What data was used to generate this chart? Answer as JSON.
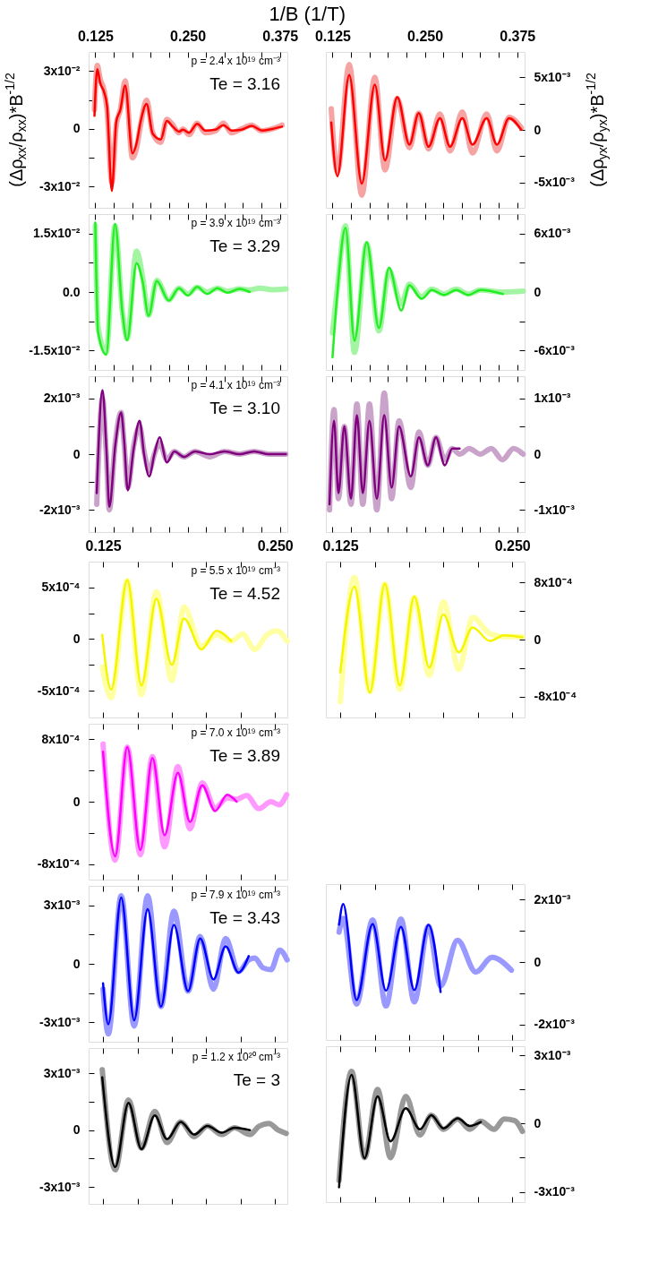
{
  "chart_data": [
    {
      "type": "line",
      "xlabel": "1/B (1/T)",
      "ylabel": "(Δρ$_{xx}$/ρ$_{xx}$)*B$^{-1/2}$",
      "annotations": [
        "p = 2.4 x 10¹⁹ cm⁻³",
        "Te = 3.16"
      ],
      "xlim": [
        0.116,
        0.385
      ],
      "xticks": [
        0.125,
        {
          "value": 0.15,
          "label": null
        },
        {
          "value": 0.175,
          "label": null
        },
        {
          "value": 0.2,
          "label": null
        },
        {
          "value": 0.225,
          "label": null
        },
        {
          "value": 0.25,
          "label": "0.250"
        },
        {
          "value": 0.275,
          "label": null
        },
        {
          "value": 0.3,
          "label": null
        },
        {
          "value": 0.325,
          "label": null
        },
        {
          "value": 0.35,
          "label": null
        },
        0.375
      ],
      "ylim": [
        -0.041,
        0.04
      ],
      "yticks": [
        {
          "value": -0.03,
          "label": "-3x10⁻²"
        },
        {
          "value": -0.015,
          "label": null
        },
        0,
        {
          "value": 0.015,
          "label": null
        },
        {
          "value": 0.03,
          "label": "3x10⁻²"
        }
      ],
      "x": [
        0.1239,
        0.1277,
        0.1316,
        0.137,
        0.1409,
        0.1474,
        0.1534,
        0.1589,
        0.1655,
        0.1753,
        0.1808,
        0.1863,
        0.1945,
        0.2027,
        0.2136,
        0.2218,
        0.23,
        0.2382,
        0.2437,
        0.2519,
        0.2629,
        0.2738,
        0.2875,
        0.2984,
        0.3094,
        0.323,
        0.3367,
        0.3504,
        0.3641,
        0.3777
      ],
      "series": [
        {
          "color": "#f5a3a3",
          "values": [
            0.01,
            0.033,
            0.026,
            0.02,
            0.01,
            -0.028,
            0.002,
            0.01,
            0.025,
            -0.015,
            -0.01,
            0.002,
            0.015,
            -0.002,
            -0.007,
            0.005,
            0.002,
            -0.002,
            0.0,
            -0.003,
            0.003,
            -0.002,
            -0.001,
            0.003,
            -0.002,
            0.0,
            0.002,
            -0.001,
            0.0,
            0.002
          ]
        },
        {
          "color": "#ff0000",
          "values": [
            0.0068,
            0.031,
            0.024,
            0.019,
            0.012,
            -0.0322,
            0.0037,
            0.0099,
            0.0226,
            -0.0127,
            -0.0076,
            0.0037,
            0.013,
            -0.0025,
            -0.0055,
            0.0041,
            0.0012,
            -0.0014,
            -0.0004,
            -0.002,
            0.0027,
            -0.0008,
            -0.0004,
            0.002,
            -0.0008,
            -0.0004,
            0.0016,
            -0.0008,
            0.0,
            0.0012
          ]
        }
      ]
    },
    {
      "type": "line",
      "ylabel": "(Δρ$_{yx}$/ρ$_{yx}$)*B$^{-1/2}$",
      "xlim": [
        0.116,
        0.385
      ],
      "xticks": [
        0.125,
        {
          "value": 0.15,
          "label": null
        },
        {
          "value": 0.175,
          "label": null
        },
        {
          "value": 0.2,
          "label": null
        },
        {
          "value": 0.225,
          "label": null
        },
        {
          "value": 0.25,
          "label": "0.250"
        },
        {
          "value": 0.275,
          "label": null
        },
        {
          "value": 0.3,
          "label": null
        },
        {
          "value": 0.325,
          "label": null
        },
        {
          "value": 0.35,
          "label": null
        },
        0.375
      ],
      "ylim": [
        -0.0074,
        0.0074
      ],
      "yticks": [
        {
          "value": -0.005,
          "label": "-5x10⁻³"
        },
        {
          "value": -0.0025,
          "label": null
        },
        0,
        {
          "value": 0.0025,
          "label": null
        },
        {
          "value": 0.005,
          "label": "5x10⁻³"
        }
      ],
      "x": [
        0.1233,
        0.1316,
        0.1476,
        0.1646,
        0.1823,
        0.196,
        0.2126,
        0.2291,
        0.2417,
        0.255,
        0.2704,
        0.2841,
        0.3007,
        0.3144,
        0.3337,
        0.3475,
        0.364,
        0.3805
      ],
      "series": [
        {
          "color": "#f5a3a3",
          "values": [
            0.002,
            -0.004,
            0.0062,
            -0.0062,
            0.005,
            -0.0038,
            0.003,
            -0.0017,
            0.0016,
            -0.0018,
            0.0015,
            -0.002,
            0.0017,
            -0.0022,
            0.0015,
            -0.002,
            0.0012,
            0.0002
          ]
        },
        {
          "color": "#ff0000",
          "values": [
            0.0007,
            -0.0044,
            0.0052,
            -0.0051,
            0.0043,
            -0.0029,
            0.0031,
            -0.0014,
            0.0016,
            -0.0016,
            0.0011,
            -0.0016,
            0.0011,
            -0.0014,
            0.0011,
            -0.0014,
            0.0011,
            0.0
          ]
        }
      ]
    },
    {
      "type": "line",
      "tick_labels": "y",
      "annotations": [
        "p = 3.9 x 10¹⁹ cm⁻³",
        "Te = 3.29"
      ],
      "xlim": [
        0.116,
        0.385
      ],
      "xticks": [
        0.125,
        {
          "value": 0.15,
          "label": null
        },
        {
          "value": 0.175,
          "label": null
        },
        {
          "value": 0.2,
          "label": null
        },
        {
          "value": 0.225,
          "label": null
        },
        0.25,
        {
          "value": 0.275,
          "label": null
        },
        {
          "value": 0.3,
          "label": null
        },
        {
          "value": 0.325,
          "label": null
        },
        {
          "value": 0.35,
          "label": null
        },
        0.375
      ],
      "ylim": [
        -0.02,
        0.02
      ],
      "yticks": [
        {
          "value": -0.015,
          "label": "-1.5x10⁻²"
        },
        {
          "value": -0.0075,
          "label": null
        },
        {
          "value": 0,
          "label": "0.0"
        },
        {
          "value": 0.0075,
          "label": null
        },
        {
          "value": 0.015,
          "label": "1.5x10⁻²"
        }
      ],
      "x": [
        0.125,
        0.1288,
        0.1398,
        0.1518,
        0.1617,
        0.1682,
        0.1808,
        0.189,
        0.1972,
        0.2082,
        0.2246,
        0.2382,
        0.2503,
        0.2629,
        0.2765,
        0.2902,
        0.3039,
        0.3203,
        0.334,
        0.3476,
        0.3641,
        0.3832
      ],
      "series": [
        {
          "color": "#a3f5a3",
          "values": [
            0.017,
            -0.009,
            -0.0155,
            0.017,
            -0.005,
            -0.012,
            0.0105,
            0.004,
            -0.006,
            0.003,
            -0.002,
            0.001,
            -0.0005,
            0.0012,
            0.0,
            0.001,
            0.0002,
            0.0008,
            0.0005,
            0.001,
            0.0006,
            0.0008
          ]
        },
        {
          "color": "#22ee22",
          "values": [
            0.0178,
            -0.0103,
            -0.0161,
            0.0175,
            -0.0053,
            -0.0124,
            0.0074,
            0.0028,
            -0.0061,
            0.0028,
            -0.0022,
            0.001,
            -0.0009,
            0.0013,
            -0.0005,
            0.001,
            -0.0002,
            0.0008,
            0.0,
            null,
            null,
            null
          ]
        }
      ]
    },
    {
      "type": "line",
      "tick_labels": "y",
      "xlim": [
        0.116,
        0.385
      ],
      "xticks": [
        0.125,
        {
          "value": 0.15,
          "label": null
        },
        {
          "value": 0.175,
          "label": null
        },
        {
          "value": 0.2,
          "label": null
        },
        {
          "value": 0.225,
          "label": null
        },
        0.25,
        {
          "value": 0.275,
          "label": null
        },
        {
          "value": 0.3,
          "label": null
        },
        {
          "value": 0.325,
          "label": null
        },
        {
          "value": 0.35,
          "label": null
        },
        0.375
      ],
      "ylim": [
        -0.008,
        0.008
      ],
      "yticks": [
        {
          "value": -0.006,
          "label": "-6x10⁻³"
        },
        {
          "value": -0.003,
          "label": null
        },
        0,
        {
          "value": 0.003,
          "label": null
        },
        {
          "value": 0.006,
          "label": "6x10⁻³"
        }
      ],
      "x": [
        0.125,
        0.1316,
        0.1426,
        0.1547,
        0.1713,
        0.1878,
        0.2015,
        0.2181,
        0.2291,
        0.2456,
        0.2594,
        0.2759,
        0.2924,
        0.3089,
        0.3254,
        0.3557,
        0.3833
      ],
      "series": [
        {
          "color": "#a3f5a3",
          "values": [
            -0.0042,
            0.0005,
            0.0068,
            -0.0062,
            0.005,
            -0.004,
            0.0022,
            -0.0012,
            0.0008,
            -0.0005,
            0.0003,
            -0.0002,
            0.0003,
            -0.0002,
            0.0002,
            0.0,
            0.0001
          ]
        },
        {
          "color": "#22ee22",
          "values": [
            -0.0067,
            0.0,
            0.0066,
            -0.005,
            0.0051,
            -0.0037,
            0.0025,
            -0.0019,
            0.0007,
            -0.0007,
            0.0002,
            -0.0003,
            0.0002,
            -0.0003,
            0.0002,
            -0.0002,
            null
          ]
        }
      ]
    },
    {
      "type": "line",
      "tick_labels": "y",
      "annotations": [
        "p = 4.1 x 10¹⁹ cm⁻³",
        "Te = 3.10"
      ],
      "xlim": [
        0.116,
        0.385
      ],
      "xticks": [
        0.125,
        {
          "value": 0.15,
          "label": null
        },
        {
          "value": 0.175,
          "label": null
        },
        {
          "value": 0.2,
          "label": null
        },
        {
          "value": 0.225,
          "label": null
        },
        0.25,
        {
          "value": 0.275,
          "label": null
        },
        {
          "value": 0.3,
          "label": null
        },
        {
          "value": 0.325,
          "label": null
        },
        {
          "value": 0.35,
          "label": null
        },
        0.375
      ],
      "ylim": [
        -0.0028,
        0.0028
      ],
      "yticks": [
        {
          "value": -0.002,
          "label": "-2x10⁻³"
        },
        {
          "value": -0.001,
          "label": null
        },
        0,
        {
          "value": 0.001,
          "label": null
        },
        {
          "value": 0.002,
          "label": "2x10⁻³"
        }
      ],
      "x": [
        0.127,
        0.1348,
        0.14,
        0.144,
        0.152,
        0.16,
        0.164,
        0.169,
        0.177,
        0.185,
        0.191,
        0.198,
        0.205,
        0.212,
        0.222,
        0.232,
        0.245,
        0.26,
        0.28,
        0.3,
        0.32,
        0.34,
        0.36,
        0.383
      ],
      "series": [
        {
          "color": "#c9a3c9",
          "values": [
            -0.0018,
            0.002,
            0.0,
            -0.002,
            0.0004,
            0.0015,
            0.0004,
            -0.0012,
            0.0003,
            0.001,
            0.0001,
            -0.0006,
            0.0,
            0.0004,
            -0.0002,
            0.0001,
            -0.0001,
            0.0001,
            -0.0001,
            0.0001,
            0.0,
            0.0001,
            0.0,
            0.0
          ]
        },
        {
          "color": "#800080",
          "values": [
            -0.0014,
            0.0023,
            0.0002,
            -0.0019,
            0.0003,
            0.0015,
            0.0005,
            -0.0013,
            0.0002,
            0.0012,
            0.0,
            -0.0008,
            0.0,
            0.0006,
            -0.0003,
            0.0001,
            -0.0001,
            0.0001,
            0.0,
            0.0001,
            0.0,
            0.0001,
            0.0,
            0.0
          ]
        }
      ]
    },
    {
      "type": "line",
      "tick_labels": "y",
      "xlim": [
        0.116,
        0.385
      ],
      "xticks": [
        0.125,
        {
          "value": 0.15,
          "label": null
        },
        {
          "value": 0.175,
          "label": null
        },
        {
          "value": 0.2,
          "label": null
        },
        {
          "value": 0.225,
          "label": null
        },
        0.25,
        {
          "value": 0.275,
          "label": null
        },
        {
          "value": 0.3,
          "label": null
        },
        {
          "value": 0.325,
          "label": null
        },
        {
          "value": 0.35,
          "label": null
        },
        0.375
      ],
      "ylim": [
        -0.0014,
        0.0014
      ],
      "yticks": [
        {
          "value": -0.001,
          "label": "-1x10⁻³"
        },
        {
          "value": -0.0005,
          "label": null
        },
        0,
        {
          "value": 0.0005,
          "label": null
        },
        {
          "value": 0.001,
          "label": "1x10⁻³"
        }
      ],
      "x": [
        0.121,
        0.127,
        0.133,
        0.141,
        0.15,
        0.158,
        0.166,
        0.175,
        0.185,
        0.195,
        0.205,
        0.215,
        0.231,
        0.242,
        0.254,
        0.265,
        0.277,
        0.287,
        0.297,
        0.31,
        0.325,
        0.34,
        0.355,
        0.37,
        0.383
      ],
      "series": [
        {
          "color": "#c9a3c9",
          "values": [
            -0.001,
            0.0008,
            -0.0008,
            0.0005,
            -0.0009,
            0.0009,
            -0.0009,
            0.0009,
            -0.001,
            0.0011,
            -0.0008,
            0.0006,
            -0.0006,
            0.0004,
            -0.0002,
            0.0003,
            -0.0001,
            0.0001,
            0.0,
            0.0001,
            0.0,
            0.0001,
            -0.0001,
            0.0001,
            0.0
          ]
        },
        {
          "color": "#800080",
          "values": [
            -0.0009,
            0.0006,
            -0.0007,
            0.0005,
            -0.0008,
            0.0007,
            -0.0007,
            0.0006,
            -0.0008,
            0.0007,
            -0.0006,
            0.0005,
            -0.0004,
            0.0003,
            -0.0002,
            0.0003,
            -0.0002,
            0.0001,
            0.0001,
            null,
            null,
            null,
            null,
            null,
            null
          ]
        }
      ]
    },
    {
      "type": "line",
      "annotations": [
        "p = 5.5 x 10¹⁹ cm⁻³",
        "Te = 4.52"
      ],
      "xlim": [
        0.1145,
        0.259
      ],
      "xticks": [
        0.125,
        {
          "value": 0.15,
          "label": null
        },
        {
          "value": 0.175,
          "label": null
        },
        {
          "value": 0.2,
          "label": null
        },
        {
          "value": 0.225,
          "label": null
        },
        {
          "value": 0.25,
          "label": "0.250"
        }
      ],
      "ylim": [
        -0.00076,
        0.00075
      ],
      "yticks": [
        {
          "value": -0.0005,
          "label": "-5x10⁻⁴"
        },
        {
          "value": -0.00025,
          "label": null
        },
        0,
        {
          "value": 0.00025,
          "label": null
        },
        {
          "value": 0.0005,
          "label": "5x10⁻⁴"
        }
      ],
      "x": [
        0.1244,
        0.1309,
        0.1426,
        0.1529,
        0.1638,
        0.175,
        0.1838,
        0.1965,
        0.2074,
        0.2182,
        0.2265,
        0.2353,
        0.2441,
        0.2515,
        0.2588
      ],
      "series": [
        {
          "color": "#ffffa3",
          "values": [
            -0.00027,
            -0.00057,
            0.00057,
            -0.00054,
            0.00046,
            -0.0004,
            0.00031,
            -7e-05,
            4e-05,
            -2e-05,
            5e-05,
            -0.0001,
            4e-05,
            8e-05,
            -2e-05
          ]
        },
        {
          "color": "#f5f500",
          "values": [
            4e-05,
            -0.00049,
            0.00057,
            -0.00045,
            0.00039,
            -0.00025,
            0.0002,
            -0.0001,
            8e-05,
            -2e-05,
            null,
            null,
            null,
            null,
            null
          ]
        }
      ]
    },
    {
      "type": "line",
      "xlim": [
        0.1145,
        0.259
      ],
      "xticks": [
        0.125,
        {
          "value": 0.15,
          "label": null
        },
        {
          "value": 0.175,
          "label": null
        },
        {
          "value": 0.2,
          "label": null
        },
        {
          "value": 0.225,
          "label": null
        },
        {
          "value": 0.25,
          "label": "0.250"
        }
      ],
      "ylim": [
        -0.00109,
        0.00109
      ],
      "yticks": [
        {
          "value": -0.0008,
          "label": "-8x10⁻⁴"
        },
        {
          "value": -0.0004,
          "label": null
        },
        0,
        {
          "value": 0.0004,
          "label": null
        },
        {
          "value": 0.0008,
          "label": "8x10⁻⁴"
        }
      ],
      "x": [
        0.125,
        0.1353,
        0.1465,
        0.1574,
        0.1682,
        0.1788,
        0.1897,
        0.2,
        0.2112,
        0.2212,
        0.2338,
        0.2441,
        0.2574
      ],
      "series": [
        {
          "color": "#ffffa3",
          "values": [
            -0.00087,
            0.00087,
            -0.00073,
            0.00078,
            -0.0007,
            0.00059,
            -0.0005,
            0.00053,
            -0.00042,
            0.00031,
            8e-05,
            4e-05,
            4e-05
          ]
        },
        {
          "color": "#f5f500",
          "values": [
            -0.00046,
            0.00074,
            -0.00074,
            0.00078,
            -0.00064,
            0.0006,
            -0.00039,
            0.00035,
            -0.00018,
            0.00017,
            -2e-05,
            6e-05,
            3e-05
          ]
        }
      ]
    },
    {
      "type": "line",
      "tick_labels": "y",
      "annotations": [
        "p = 7.0 x 10¹⁹ cm⁻³",
        "Te = 3.89"
      ],
      "xlim": [
        0.1145,
        0.259
      ],
      "xticks": [
        0.125,
        {
          "value": 0.15,
          "label": null
        },
        {
          "value": 0.175,
          "label": null
        },
        {
          "value": 0.2,
          "label": null
        },
        {
          "value": 0.225,
          "label": null
        },
        0.25
      ],
      "ylim": [
        -0.001,
        0.001
      ],
      "yticks": [
        {
          "value": -0.0008,
          "label": "-8x10⁻⁴"
        },
        {
          "value": -0.0004,
          "label": null
        },
        0,
        {
          "value": 0.0004,
          "label": null
        },
        {
          "value": 0.0008,
          "label": "8x10⁻⁴"
        }
      ],
      "x": [
        0.125,
        0.1338,
        0.1426,
        0.1521,
        0.1609,
        0.1697,
        0.1794,
        0.1882,
        0.1971,
        0.2065,
        0.2153,
        0.2221,
        0.2294,
        0.2382,
        0.2471,
        0.2529,
        0.2585
      ],
      "series": [
        {
          "color": "#ff99ff",
          "values": [
            0.00074,
            -0.00075,
            0.0007,
            -0.00068,
            0.00058,
            -0.00058,
            0.00045,
            -0.00035,
            0.00024,
            -8e-05,
            5e-05,
            3e-05,
            8e-05,
            -9e-05,
            0.0,
            -4e-05,
            9e-05
          ]
        },
        {
          "color": "#ff00ff",
          "values": [
            0.00064,
            -0.0007,
            0.0007,
            -0.00062,
            0.00056,
            -0.00043,
            0.00037,
            -0.00026,
            0.00021,
            -0.00012,
            9e-05,
            0.0,
            null,
            null,
            null,
            null,
            null
          ]
        }
      ]
    },
    {
      "type": "line",
      "tick_labels": "y",
      "annotations": [
        "p = 7.9 x 10¹⁹ cm⁻³",
        "Te = 3.43"
      ],
      "xlim": [
        0.1145,
        0.259
      ],
      "xticks": [
        0.125,
        {
          "value": 0.15,
          "label": null
        },
        {
          "value": 0.175,
          "label": null
        },
        {
          "value": 0.2,
          "label": null
        },
        {
          "value": 0.225,
          "label": null
        },
        0.25
      ],
      "ylim": [
        -0.004,
        0.004
      ],
      "yticks": [
        {
          "value": -0.003,
          "label": "-3x10⁻³"
        },
        {
          "value": -0.0015,
          "label": null
        },
        0,
        {
          "value": 0.0015,
          "label": null
        },
        {
          "value": 0.003,
          "label": "3x10⁻³"
        }
      ],
      "x": [
        0.125,
        0.1288,
        0.1382,
        0.1476,
        0.1574,
        0.1671,
        0.1765,
        0.1868,
        0.1956,
        0.2053,
        0.2141,
        0.2235,
        0.2309,
        0.2353,
        0.2412,
        0.2471,
        0.2535,
        0.2588
      ],
      "series": [
        {
          "color": "#9999ff",
          "values": [
            -0.0013,
            -0.0036,
            0.0035,
            -0.0032,
            0.0035,
            -0.0022,
            0.0027,
            -0.0014,
            0.0014,
            -0.0013,
            0.0013,
            -0.0004,
            0.0002,
            0.0003,
            -0.0002,
            -0.0003,
            0.0007,
            0.0002
          ]
        },
        {
          "color": "#0000ff",
          "values": [
            -0.001,
            -0.0031,
            0.0034,
            -0.0029,
            0.0028,
            -0.0022,
            0.002,
            -0.0014,
            0.0013,
            -0.0008,
            0.0009,
            -0.00045,
            0.0004,
            null,
            null,
            null,
            null,
            null
          ]
        }
      ]
    },
    {
      "type": "line",
      "tick_labels": "y",
      "xlim": [
        0.1145,
        0.259
      ],
      "xticks": [
        0.125,
        {
          "value": 0.15,
          "label": null
        },
        {
          "value": 0.175,
          "label": null
        },
        {
          "value": 0.2,
          "label": null
        },
        {
          "value": 0.225,
          "label": null
        },
        0.25
      ],
      "ylim": [
        -0.0025,
        0.0025
      ],
      "yticks": [
        {
          "value": -0.002,
          "label": "-2x10⁻³"
        },
        {
          "value": -0.001,
          "label": null
        },
        0,
        {
          "value": 0.001,
          "label": null
        },
        {
          "value": 0.002,
          "label": "2x10⁻³"
        }
      ],
      "x": [
        0.1241,
        0.1271,
        0.1368,
        0.1485,
        0.1582,
        0.1691,
        0.1788,
        0.1891,
        0.1979,
        0.2103,
        0.2235,
        0.2353,
        0.2494
      ],
      "series": [
        {
          "color": "#9999ff",
          "values": [
            0.00096,
            0.0014,
            -0.00135,
            0.00135,
            -0.00141,
            0.00138,
            -0.00128,
            0.00115,
            -0.00077,
            0.0007,
            -0.00032,
            0.00015,
            -0.00026
          ]
        },
        {
          "color": "#0000ff",
          "values": [
            0.0012,
            0.00186,
            -0.00122,
            0.00122,
            -0.00092,
            0.00113,
            -0.0009,
            0.00119,
            -0.00096,
            null,
            null,
            null,
            null
          ]
        }
      ]
    },
    {
      "type": "line",
      "tick_labels": "y",
      "annotations": [
        "p = 1.2 x 10²⁰ cm⁻³",
        "Te = 3"
      ],
      "xlim": [
        0.1145,
        0.259
      ],
      "xticks": [
        0.125,
        {
          "value": 0.15,
          "label": null
        },
        {
          "value": 0.175,
          "label": null
        },
        {
          "value": 0.2,
          "label": null
        },
        {
          "value": 0.225,
          "label": null
        },
        0.25
      ],
      "ylim": [
        -0.0039,
        0.00435
      ],
      "yticks": [
        {
          "value": -0.003,
          "label": "-3x10⁻³"
        },
        {
          "value": -0.0015,
          "label": null
        },
        0,
        {
          "value": 0.0015,
          "label": null
        },
        {
          "value": 0.003,
          "label": "3x10⁻³"
        }
      ],
      "x": [
        0.1244,
        0.1338,
        0.1435,
        0.1529,
        0.1626,
        0.1715,
        0.1815,
        0.1912,
        0.2009,
        0.2112,
        0.2206,
        0.2318,
        0.2382,
        0.2456,
        0.2524,
        0.2582
      ],
      "series": [
        {
          "color": "#999999",
          "values": [
            0.0032,
            -0.0021,
            0.0016,
            -0.00096,
            0.001,
            -0.00065,
            0.00044,
            -0.00034,
            0.00023,
            -0.00023,
            0.00013,
            -0.00023,
            0.0002,
            0.00036,
            0.0,
            -0.00017
          ]
        },
        {
          "color": "#000000",
          "values": [
            0.0028,
            -0.00195,
            0.00145,
            -0.001,
            0.00078,
            -0.00048,
            0.00044,
            -0.00023,
            0.00023,
            -0.00013,
            0.00013,
            0.0,
            null,
            null,
            null,
            null
          ]
        }
      ]
    },
    {
      "type": "line",
      "tick_labels": "y",
      "xlim": [
        0.1145,
        0.259
      ],
      "xticks": [
        0.125,
        {
          "value": 0.15,
          "label": null
        },
        {
          "value": 0.175,
          "label": null
        },
        {
          "value": 0.2,
          "label": null
        },
        {
          "value": 0.225,
          "label": null
        },
        0.25
      ],
      "ylim": [
        -0.00345,
        0.0034
      ],
      "yticks": [
        {
          "value": -0.003,
          "label": "-3x10⁻³"
        },
        {
          "value": -0.0015,
          "label": null
        },
        0,
        {
          "value": 0.0015,
          "label": null
        },
        {
          "value": 0.003,
          "label": "3x10⁻³"
        }
      ],
      "x": [
        0.1241,
        0.1332,
        0.1426,
        0.1521,
        0.1615,
        0.1726,
        0.1829,
        0.1912,
        0.2,
        0.2103,
        0.2191,
        0.2271,
        0.2368,
        0.2441,
        0.2515,
        0.2574
      ],
      "series": [
        {
          "color": "#999999",
          "values": [
            -0.0025,
            0.0023,
            -0.0015,
            0.0015,
            -0.0015,
            0.0012,
            -0.0005,
            0.00037,
            -0.00025,
            0.0002,
            -0.00025,
            0.0001,
            -0.00025,
            0.0002,
            0.00014,
            -0.00034
          ]
        },
        {
          "color": "#000000",
          "values": [
            -0.0028,
            0.00214,
            -0.00152,
            0.0012,
            -0.00078,
            0.00067,
            -0.00025,
            0.00037,
            -0.00021,
            0.00023,
            -0.0001,
            7e-05,
            null,
            null,
            null,
            null
          ]
        }
      ]
    }
  ]
}
